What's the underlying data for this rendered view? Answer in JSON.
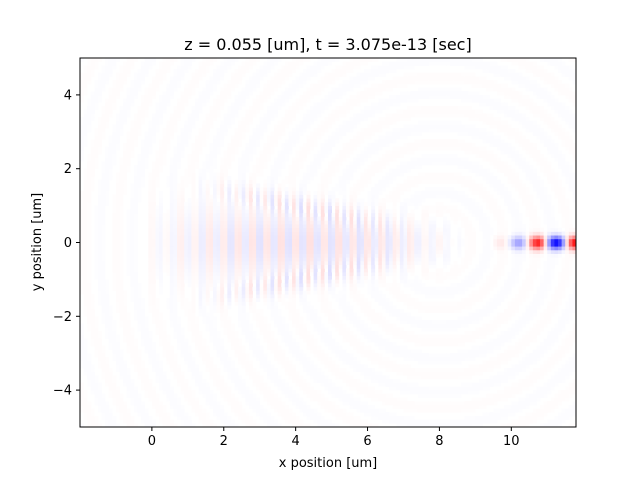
{
  "chart_data": {
    "type": "heatmap",
    "title": "z = 0.055 [um], t = 3.075e-13 [sec]",
    "xlabel": "x position [um]",
    "ylabel": "y position [um]",
    "xlim": [
      -2.0,
      11.8
    ],
    "ylim": [
      -5.0,
      5.0
    ],
    "x_ticks": [
      0,
      2,
      4,
      6,
      8,
      10
    ],
    "x_tick_labels": [
      "0",
      "2",
      "4",
      "6",
      "8",
      "10"
    ],
    "y_ticks": [
      -4,
      -2,
      0,
      2,
      4
    ],
    "y_tick_labels": [
      "−4",
      "−2",
      "0",
      "2",
      "4"
    ],
    "colormap": "bwr",
    "colors": {
      "positive": "#ff0000",
      "negative": "#0000ff",
      "zero": "#ffffff"
    },
    "field_sources": [
      {
        "label": "waveguide-mode",
        "x_range": [
          9.2,
          11.8
        ],
        "y": 0.0,
        "peak_amplitude": 1.0,
        "period_um": 0.55
      },
      {
        "label": "diffracted-beam",
        "x_range": [
          -0.5,
          8.8
        ],
        "y": 0.0,
        "peak_amplitude": 0.15,
        "period_um": 0.4
      },
      {
        "label": "upper-side-lobe",
        "x_range": [
          1.0,
          7.5
        ],
        "y_start": 1.6,
        "y_end": 0.3,
        "peak_amplitude": 0.1,
        "period_um": 0.4
      },
      {
        "label": "lower-side-lobe",
        "x_range": [
          1.0,
          7.5
        ],
        "y_start": -1.6,
        "y_end": -0.3,
        "peak_amplitude": 0.1,
        "period_um": 0.4
      }
    ]
  }
}
